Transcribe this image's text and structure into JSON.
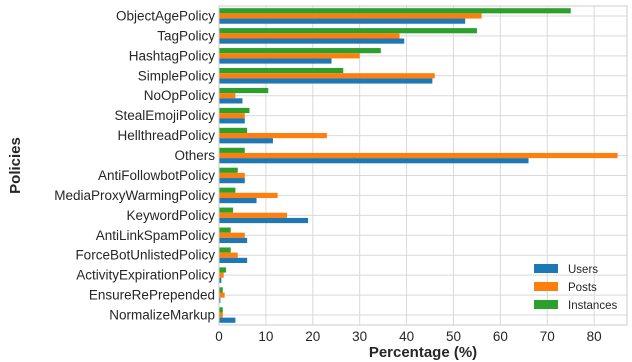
{
  "chart_data": {
    "type": "bar",
    "orientation": "horizontal",
    "categories": [
      "ObjectAgePolicy",
      "TagPolicy",
      "HashtagPolicy",
      "SimplePolicy",
      "NoOpPolicy",
      "StealEmojiPolicy",
      "HellthreadPolicy",
      "Others",
      "AntiFollowbotPolicy",
      "MediaProxyWarmingPolicy",
      "KeywordPolicy",
      "AntiLinkSpamPolicy",
      "ForceBotUnlistedPolicy",
      "ActivityExpirationPolicy",
      "EnsureRePrepended",
      "NormalizeMarkup"
    ],
    "series": [
      {
        "name": "Users",
        "color": "#1f77b4",
        "values": [
          52.5,
          39.5,
          24.0,
          45.5,
          5.0,
          5.5,
          11.5,
          66.0,
          5.5,
          8.0,
          19.0,
          6.0,
          6.0,
          0.5,
          0.3,
          3.5
        ]
      },
      {
        "name": "Posts",
        "color": "#ff7f0e",
        "values": [
          56.0,
          38.5,
          30.0,
          46.0,
          3.5,
          5.5,
          23.0,
          85.0,
          5.5,
          12.5,
          14.5,
          5.5,
          4.0,
          1.0,
          1.2,
          0.8
        ]
      },
      {
        "name": "Instances",
        "color": "#2ca02c",
        "values": [
          75.0,
          55.0,
          34.5,
          26.5,
          10.5,
          6.5,
          6.0,
          5.5,
          4.0,
          3.5,
          3.0,
          2.5,
          2.5,
          1.5,
          0.8,
          0.8
        ]
      }
    ],
    "xlabel": "Percentage (%)",
    "ylabel": "Policies",
    "xlim": [
      0,
      87
    ],
    "xticks": [
      "0",
      "10",
      "20",
      "30",
      "40",
      "50",
      "60",
      "70",
      "80"
    ],
    "grid": true,
    "legend_position": "bottom-right"
  }
}
